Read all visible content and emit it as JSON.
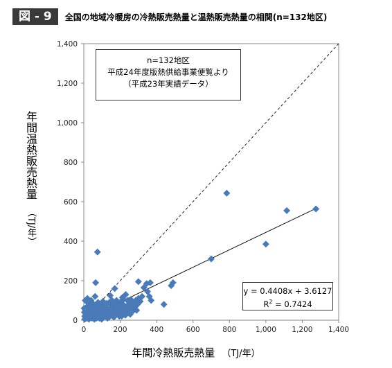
{
  "figure": {
    "badge": "図 - 9",
    "title": "全国の地域冷暖房の冷熱販売熱量と温熱販売熱量の相関(n=132地区)"
  },
  "note": {
    "line1": "n=132地区",
    "line2": "平成24年度版熱供給事業便覧より",
    "line3": "（平成23年実績データ）"
  },
  "equation": {
    "line1": "y = 0.4408x + 3.6127",
    "r2_prefix": "R",
    "r2_sup": "2",
    "r2_suffix": " = 0.7424"
  },
  "chart_data": {
    "type": "scatter",
    "xlabel": "年間冷熱販売熱量",
    "xunit": "（TJ/年）",
    "ylabel": "年間温熱販売熱量",
    "yunit": "（TJ/年）",
    "xlim": [
      0,
      1400
    ],
    "ylim": [
      0,
      1400
    ],
    "xticks": [
      0,
      200,
      400,
      600,
      800,
      1000,
      1200,
      1400
    ],
    "yticks": [
      0,
      200,
      400,
      600,
      800,
      1000,
      1200,
      1400
    ],
    "xtick_labels": [
      "0",
      "200",
      "400",
      "600",
      "800",
      "1,000",
      "1,200",
      "1,400"
    ],
    "ytick_labels": [
      "0",
      "200",
      "400",
      "600",
      "800",
      "1,000",
      "1,200",
      "1,400"
    ],
    "grid": "none",
    "marker_color": "#4a7ab8",
    "series": [
      {
        "points": [
          [
            1275,
            563
          ],
          [
            1115,
            555
          ],
          [
            1000,
            385
          ],
          [
            785,
            643
          ],
          [
            700,
            310
          ],
          [
            75,
            345
          ],
          [
            65,
            190
          ],
          [
            170,
            160
          ],
          [
            145,
            125
          ],
          [
            300,
            195
          ],
          [
            345,
            185
          ],
          [
            365,
            190
          ],
          [
            330,
            165
          ],
          [
            350,
            145
          ],
          [
            360,
            120
          ],
          [
            320,
            120
          ],
          [
            370,
            100
          ],
          [
            440,
            80
          ],
          [
            480,
            175
          ],
          [
            490,
            190
          ],
          [
            300,
            110
          ],
          [
            310,
            95
          ],
          [
            270,
            75
          ],
          [
            250,
            90
          ],
          [
            240,
            100
          ],
          [
            230,
            130
          ],
          [
            260,
            60
          ],
          [
            200,
            60
          ],
          [
            210,
            40
          ],
          [
            190,
            80
          ],
          [
            180,
            100
          ],
          [
            170,
            50
          ],
          [
            160,
            70
          ],
          [
            150,
            30
          ],
          [
            140,
            90
          ],
          [
            130,
            60
          ],
          [
            120,
            40
          ],
          [
            110,
            70
          ],
          [
            100,
            50
          ],
          [
            95,
            20
          ],
          [
            90,
            80
          ],
          [
            85,
            40
          ],
          [
            80,
            60
          ],
          [
            75,
            25
          ],
          [
            70,
            10
          ],
          [
            65,
            55
          ],
          [
            60,
            30
          ],
          [
            55,
            80
          ],
          [
            50,
            15
          ],
          [
            45,
            45
          ],
          [
            40,
            60
          ],
          [
            35,
            20
          ],
          [
            30,
            95
          ],
          [
            25,
            40
          ],
          [
            20,
            70
          ],
          [
            15,
            10
          ],
          [
            12,
            30
          ],
          [
            10,
            50
          ],
          [
            8,
            100
          ],
          [
            5,
            5
          ],
          [
            5,
            20
          ],
          [
            3,
            40
          ],
          [
            2,
            60
          ],
          [
            20,
            110
          ],
          [
            40,
            100
          ],
          [
            60,
            15
          ],
          [
            110,
            20
          ],
          [
            130,
            10
          ],
          [
            150,
            55
          ],
          [
            175,
            30
          ],
          [
            195,
            20
          ],
          [
            215,
            80
          ],
          [
            220,
            60
          ],
          [
            245,
            45
          ],
          [
            265,
            90
          ],
          [
            280,
            65
          ],
          [
            290,
            50
          ],
          [
            125,
            85
          ],
          [
            105,
            95
          ],
          [
            155,
            100
          ],
          [
            115,
            30
          ],
          [
            135,
            45
          ],
          [
            165,
            15
          ],
          [
            185,
            65
          ],
          [
            205,
            95
          ],
          [
            225,
            35
          ],
          [
            235,
            70
          ],
          [
            255,
            30
          ],
          [
            275,
            85
          ],
          [
            95,
            65
          ],
          [
            85,
            10
          ],
          [
            70,
            70
          ],
          [
            55,
            35
          ],
          [
            45,
            10
          ],
          [
            30,
            55
          ],
          [
            18,
            25
          ],
          [
            10,
            15
          ],
          [
            25,
            85
          ],
          [
            38,
            35
          ],
          [
            48,
            75
          ],
          [
            58,
            5
          ],
          [
            68,
            40
          ],
          [
            78,
            90
          ],
          [
            88,
            25
          ],
          [
            98,
            5
          ],
          [
            108,
            55
          ],
          [
            118,
            75
          ],
          [
            128,
            25
          ],
          [
            138,
            15
          ],
          [
            148,
            80
          ],
          [
            158,
            40
          ],
          [
            168,
            85
          ],
          [
            178,
            55
          ],
          [
            188,
            35
          ],
          [
            198,
            45
          ],
          [
            208,
            20
          ],
          [
            218,
            105
          ],
          [
            228,
            25
          ],
          [
            238,
            55
          ],
          [
            248,
            75
          ],
          [
            258,
            105
          ],
          [
            268,
            45
          ],
          [
            285,
            100
          ],
          [
            295,
            80
          ],
          [
            212,
            115
          ],
          [
            62,
            120
          ],
          [
            42,
            25
          ],
          [
            28,
            5
          ],
          [
            15,
            45
          ],
          [
            33,
            75
          ],
          [
            52,
            58
          ],
          [
            72,
            48
          ]
        ]
      }
    ],
    "trendline": {
      "slope": 0.4408,
      "intercept": 3.6127,
      "x_range": [
        0,
        1275
      ]
    },
    "reference_line": {
      "slope": 1,
      "intercept": 0,
      "x_range": [
        0,
        1400
      ],
      "style": "dashed"
    }
  }
}
